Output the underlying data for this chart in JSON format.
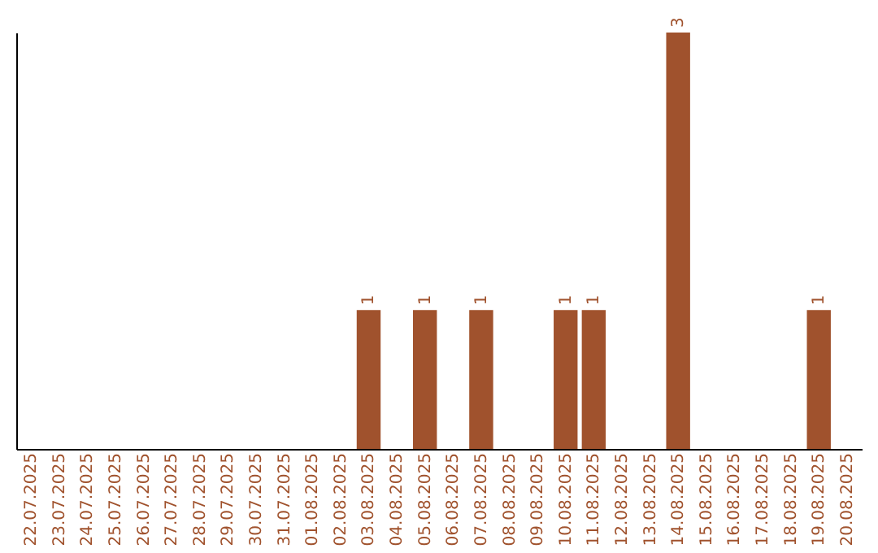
{
  "chart_data": {
    "type": "bar",
    "categories": [
      "22.07.2025",
      "23.07.2025",
      "24.07.2025",
      "25.07.2025",
      "26.07.2025",
      "27.07.2025",
      "28.07.2025",
      "29.07.2025",
      "30.07.2025",
      "31.07.2025",
      "01.08.2025",
      "02.08.2025",
      "03.08.2025",
      "04.08.2025",
      "05.08.2025",
      "06.08.2025",
      "07.08.2025",
      "08.08.2025",
      "09.08.2025",
      "10.08.2025",
      "11.08.2025",
      "12.08.2025",
      "13.08.2025",
      "14.08.2025",
      "15.08.2025",
      "16.08.2025",
      "17.08.2025",
      "18.08.2025",
      "19.08.2025",
      "20.08.2025"
    ],
    "values": [
      null,
      null,
      null,
      null,
      null,
      null,
      null,
      null,
      null,
      null,
      null,
      null,
      1,
      null,
      1,
      null,
      1,
      null,
      null,
      1,
      1,
      null,
      null,
      3,
      null,
      null,
      null,
      null,
      1,
      null
    ],
    "value_labels": [
      null,
      null,
      null,
      null,
      null,
      null,
      null,
      null,
      null,
      null,
      null,
      null,
      "1",
      null,
      "1",
      null,
      "1",
      null,
      null,
      "1",
      "1",
      null,
      null,
      "3",
      null,
      null,
      null,
      null,
      "1",
      null
    ],
    "color": "#a0522d",
    "ylim": [
      0,
      3
    ],
    "tick_labels": "x",
    "grid": false
  }
}
